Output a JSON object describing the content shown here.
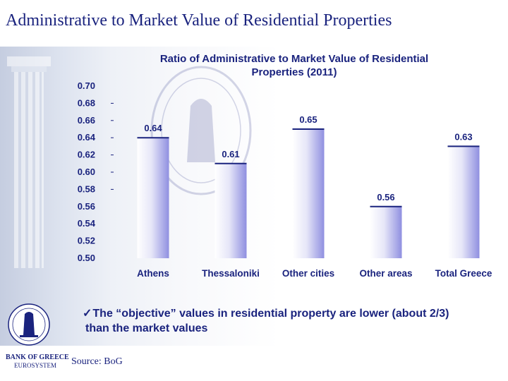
{
  "slide": {
    "title": "Administrative to Market Value of Residential Properties"
  },
  "bullet": {
    "check": "✓",
    "line1": "The “objective” values in residential property are lower (about 2/3)",
    "line2": "than the market values"
  },
  "footer": {
    "bank_name": "BANK OF GREECE",
    "eurosystem": "EUROSYSTEM",
    "source": "Source: BoG"
  },
  "colors": {
    "title": "#1a237e",
    "bar_light": "#f4f4fc",
    "bar_dark": "#8f8fe0"
  },
  "chart_data": {
    "type": "bar",
    "title_lines": [
      "Ratio of Administrative to Market Value of Residential",
      "Properties (2011)"
    ],
    "categories": [
      "Athens",
      "Thessaloniki",
      "Other cities",
      "Other areas",
      "Total Greece"
    ],
    "values": [
      0.64,
      0.61,
      0.65,
      0.56,
      0.63
    ],
    "value_labels": [
      "0.64",
      "0.61",
      "0.65",
      "0.56",
      "0.63"
    ],
    "ylim": [
      0.5,
      0.7
    ],
    "yticks": [
      "0.70",
      "0.68",
      "0.66",
      "0.64",
      "0.62",
      "0.60",
      "0.58",
      "0.56",
      "0.54",
      "0.52",
      "0.50"
    ],
    "xlabel": "",
    "ylabel": "",
    "grid": false,
    "legend": "none"
  }
}
